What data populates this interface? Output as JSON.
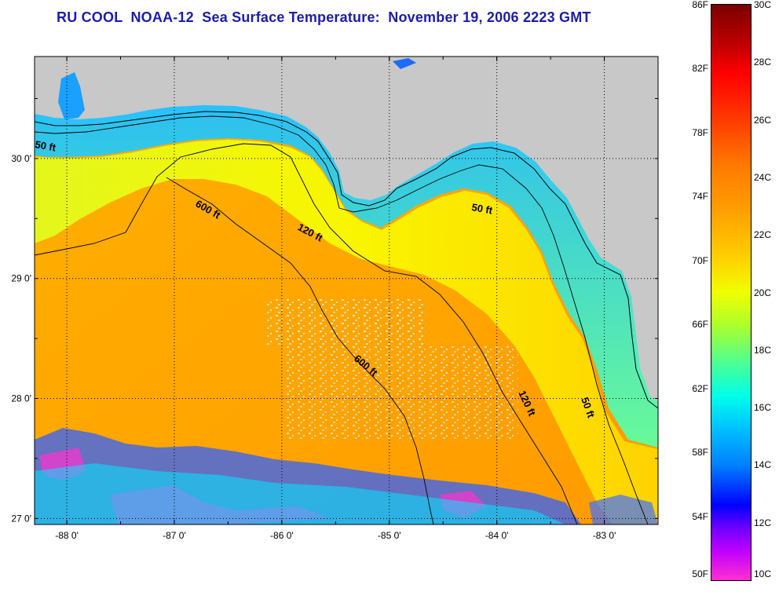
{
  "title": "RU COOL  NOAA-12  Sea Surface Temperature:  November 19, 2006 2223 GMT",
  "map": {
    "x_ticks": [
      {
        "lon": -88,
        "label": "-88 0'"
      },
      {
        "lon": -87,
        "label": "-87 0'"
      },
      {
        "lon": -86,
        "label": "-86 0'"
      },
      {
        "lon": -85,
        "label": "-85 0'"
      },
      {
        "lon": -84,
        "label": "-84 0'"
      },
      {
        "lon": -83,
        "label": "-83 0'"
      }
    ],
    "y_ticks": [
      {
        "lat": 30,
        "label": "30 0'"
      },
      {
        "lat": 29,
        "label": "29 0'"
      },
      {
        "lat": 28,
        "label": "28 0'"
      },
      {
        "lat": 27,
        "label": "27 0'"
      }
    ],
    "lon_range": [
      -88.3,
      -82.5
    ],
    "lat_range": [
      26.95,
      30.85
    ],
    "contour_labels": [
      {
        "id": "west-50",
        "text": "50 ft"
      },
      {
        "id": "west-600",
        "text": "600 ft"
      },
      {
        "id": "west-120",
        "text": "120 ft"
      },
      {
        "id": "east-50-north",
        "text": "50 ft"
      },
      {
        "id": "east-600",
        "text": "600 ft"
      },
      {
        "id": "east-120",
        "text": "120 ft"
      },
      {
        "id": "east-50-south",
        "text": "50 ft"
      }
    ],
    "land_color": "#c8c8c8"
  },
  "colorbar": {
    "fahrenheit": [
      "86F",
      "82F",
      "78F",
      "74F",
      "70F",
      "66F",
      "62F",
      "58F",
      "54F",
      "50F"
    ],
    "celsius": [
      "30C",
      "28C",
      "26C",
      "24C",
      "22C",
      "20C",
      "18C",
      "16C",
      "14C",
      "12C",
      "10C"
    ]
  }
}
